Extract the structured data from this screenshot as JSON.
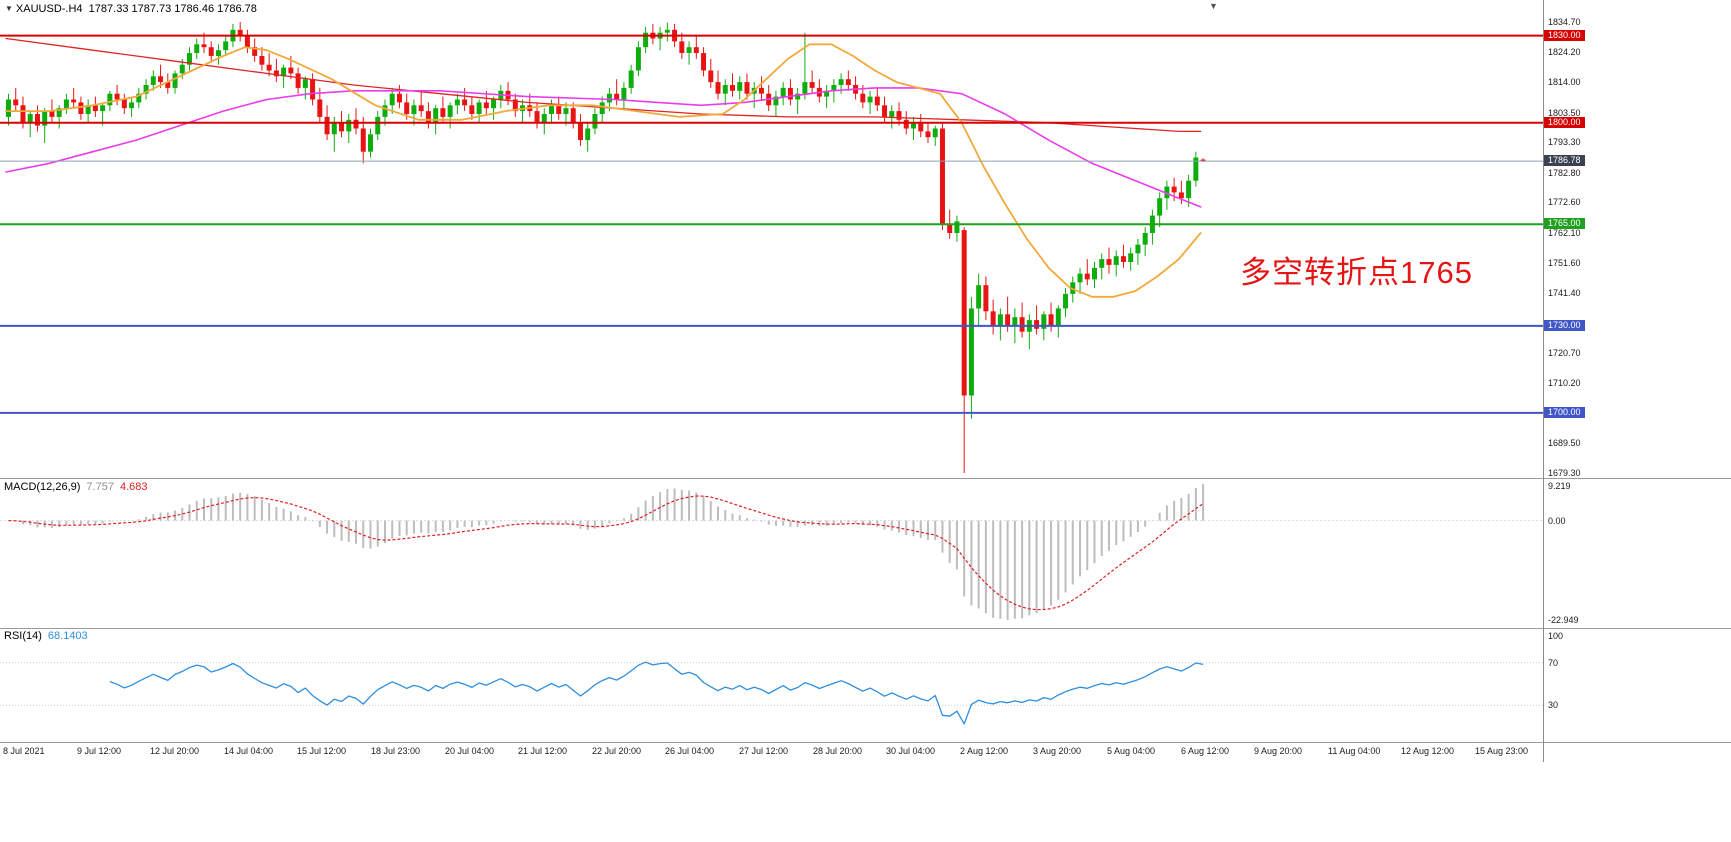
{
  "window": {
    "title_symbol": "XAUUSD-.H4",
    "title_ohlc": "1787.33 1787.73 1786.46 1786.78"
  },
  "chart_data": {
    "type": "candlestick",
    "symbol": "XAUUSD-",
    "timeframe": "H4",
    "ylim": [
      1679.3,
      1834.7
    ],
    "up_color": "#0ead0e",
    "down_color": "#e81414",
    "candles": [
      [
        1802,
        1810,
        1799,
        1808
      ],
      [
        1808,
        1812,
        1804,
        1806
      ],
      [
        1806,
        1809,
        1798,
        1800
      ],
      [
        1800,
        1804,
        1795,
        1803
      ],
      [
        1803,
        1806,
        1797,
        1799
      ],
      [
        1799,
        1805,
        1793,
        1804
      ],
      [
        1804,
        1808,
        1800,
        1802
      ],
      [
        1802,
        1806,
        1798,
        1805
      ],
      [
        1805,
        1810,
        1803,
        1808
      ],
      [
        1808,
        1812,
        1805,
        1807
      ],
      [
        1807,
        1809,
        1801,
        1803
      ],
      [
        1803,
        1808,
        1800,
        1806
      ],
      [
        1806,
        1809,
        1802,
        1804
      ],
      [
        1804,
        1807,
        1799,
        1806
      ],
      [
        1806,
        1811,
        1804,
        1810
      ],
      [
        1810,
        1813,
        1806,
        1808
      ],
      [
        1808,
        1810,
        1803,
        1805
      ],
      [
        1805,
        1809,
        1802,
        1807
      ],
      [
        1807,
        1812,
        1805,
        1810
      ],
      [
        1810,
        1815,
        1808,
        1813
      ],
      [
        1813,
        1818,
        1811,
        1816
      ],
      [
        1816,
        1820,
        1812,
        1814
      ],
      [
        1814,
        1817,
        1810,
        1812
      ],
      [
        1812,
        1818,
        1810,
        1817
      ],
      [
        1817,
        1822,
        1815,
        1820
      ],
      [
        1820,
        1826,
        1818,
        1824
      ],
      [
        1824,
        1829,
        1822,
        1827
      ],
      [
        1827,
        1831,
        1824,
        1826
      ],
      [
        1826,
        1828,
        1821,
        1823
      ],
      [
        1823,
        1827,
        1820,
        1825
      ],
      [
        1825,
        1830,
        1823,
        1828
      ],
      [
        1828,
        1834,
        1826,
        1832
      ],
      [
        1832,
        1834.7,
        1828,
        1830
      ],
      [
        1830,
        1832,
        1824,
        1826
      ],
      [
        1826,
        1829,
        1821,
        1823
      ],
      [
        1823,
        1826,
        1818,
        1820
      ],
      [
        1820,
        1824,
        1816,
        1818
      ],
      [
        1818,
        1822,
        1814,
        1816
      ],
      [
        1816,
        1820,
        1812,
        1819
      ],
      [
        1819,
        1823,
        1815,
        1817
      ],
      [
        1817,
        1819,
        1810,
        1812
      ],
      [
        1812,
        1816,
        1808,
        1815
      ],
      [
        1815,
        1817,
        1806,
        1808
      ],
      [
        1808,
        1812,
        1800,
        1802
      ],
      [
        1802,
        1806,
        1794,
        1796
      ],
      [
        1796,
        1802,
        1790,
        1800
      ],
      [
        1800,
        1804,
        1795,
        1797
      ],
      [
        1797,
        1803,
        1793,
        1801
      ],
      [
        1801,
        1805,
        1796,
        1798
      ],
      [
        1798,
        1802,
        1786,
        1790
      ],
      [
        1790,
        1798,
        1788,
        1796
      ],
      [
        1796,
        1804,
        1794,
        1802
      ],
      [
        1802,
        1808,
        1799,
        1806
      ],
      [
        1806,
        1812,
        1803,
        1810
      ],
      [
        1810,
        1813,
        1805,
        1807
      ],
      [
        1807,
        1810,
        1801,
        1803
      ],
      [
        1803,
        1808,
        1799,
        1806
      ],
      [
        1806,
        1811,
        1802,
        1804
      ],
      [
        1804,
        1807,
        1798,
        1800
      ],
      [
        1800,
        1806,
        1796,
        1805
      ],
      [
        1805,
        1809,
        1800,
        1802
      ],
      [
        1802,
        1807,
        1798,
        1806
      ],
      [
        1806,
        1810,
        1803,
        1808
      ],
      [
        1808,
        1812,
        1804,
        1806
      ],
      [
        1806,
        1809,
        1801,
        1803
      ],
      [
        1803,
        1808,
        1800,
        1807
      ],
      [
        1807,
        1811,
        1803,
        1805
      ],
      [
        1805,
        1809,
        1801,
        1808
      ],
      [
        1808,
        1813,
        1805,
        1811
      ],
      [
        1811,
        1814,
        1806,
        1808
      ],
      [
        1808,
        1810,
        1802,
        1804
      ],
      [
        1804,
        1808,
        1800,
        1806
      ],
      [
        1806,
        1810,
        1802,
        1804
      ],
      [
        1804,
        1807,
        1798,
        1800
      ],
      [
        1800,
        1805,
        1796,
        1803
      ],
      [
        1803,
        1808,
        1800,
        1806
      ],
      [
        1806,
        1809,
        1801,
        1803
      ],
      [
        1803,
        1807,
        1799,
        1805
      ],
      [
        1805,
        1807,
        1798,
        1800
      ],
      [
        1800,
        1803,
        1792,
        1794
      ],
      [
        1794,
        1800,
        1790,
        1798
      ],
      [
        1798,
        1805,
        1796,
        1803
      ],
      [
        1803,
        1809,
        1800,
        1807
      ],
      [
        1807,
        1812,
        1804,
        1810
      ],
      [
        1810,
        1815,
        1806,
        1808
      ],
      [
        1808,
        1814,
        1805,
        1812
      ],
      [
        1812,
        1820,
        1810,
        1818
      ],
      [
        1818,
        1828,
        1816,
        1826
      ],
      [
        1826,
        1833,
        1824,
        1831
      ],
      [
        1831,
        1834,
        1827,
        1829
      ],
      [
        1829,
        1833,
        1825,
        1831
      ],
      [
        1831,
        1834.5,
        1828,
        1832
      ],
      [
        1832,
        1834,
        1826,
        1828
      ],
      [
        1828,
        1831,
        1822,
        1824
      ],
      [
        1824,
        1828,
        1820,
        1826
      ],
      [
        1826,
        1830,
        1822,
        1824
      ],
      [
        1824,
        1826,
        1816,
        1818
      ],
      [
        1818,
        1822,
        1812,
        1814
      ],
      [
        1814,
        1818,
        1808,
        1810
      ],
      [
        1810,
        1815,
        1806,
        1813
      ],
      [
        1813,
        1817,
        1809,
        1811
      ],
      [
        1811,
        1816,
        1808,
        1814
      ],
      [
        1814,
        1817,
        1808,
        1810
      ],
      [
        1810,
        1814,
        1805,
        1812
      ],
      [
        1812,
        1816,
        1808,
        1810
      ],
      [
        1810,
        1813,
        1804,
        1806
      ],
      [
        1806,
        1811,
        1802,
        1809
      ],
      [
        1809,
        1814,
        1806,
        1812
      ],
      [
        1812,
        1815,
        1806,
        1808
      ],
      [
        1808,
        1812,
        1803,
        1810
      ],
      [
        1810,
        1831,
        1808,
        1814
      ],
      [
        1814,
        1818,
        1810,
        1812
      ],
      [
        1812,
        1815,
        1807,
        1809
      ],
      [
        1809,
        1813,
        1805,
        1811
      ],
      [
        1811,
        1815,
        1807,
        1813
      ],
      [
        1813,
        1817,
        1810,
        1815
      ],
      [
        1815,
        1818,
        1811,
        1813
      ],
      [
        1813,
        1816,
        1808,
        1810
      ],
      [
        1810,
        1813,
        1805,
        1807
      ],
      [
        1807,
        1811,
        1803,
        1809
      ],
      [
        1809,
        1812,
        1804,
        1806
      ],
      [
        1806,
        1809,
        1800,
        1802
      ],
      [
        1802,
        1806,
        1798,
        1804
      ],
      [
        1804,
        1807,
        1799,
        1801
      ],
      [
        1801,
        1804,
        1796,
        1798
      ],
      [
        1798,
        1802,
        1794,
        1800
      ],
      [
        1800,
        1803,
        1795,
        1797
      ],
      [
        1797,
        1800,
        1793,
        1795
      ],
      [
        1795,
        1799,
        1792,
        1798
      ],
      [
        1798,
        1800,
        1763,
        1765
      ],
      [
        1765,
        1770,
        1760,
        1762
      ],
      [
        1762,
        1768,
        1759,
        1766
      ],
      [
        1763,
        1764,
        1679.3,
        1706
      ],
      [
        1706,
        1740,
        1698,
        1736
      ],
      [
        1736,
        1748,
        1730,
        1744
      ],
      [
        1744,
        1747,
        1732,
        1735
      ],
      [
        1735,
        1739,
        1727,
        1730
      ],
      [
        1730,
        1736,
        1725,
        1734
      ],
      [
        1734,
        1740,
        1728,
        1730
      ],
      [
        1730,
        1736,
        1724,
        1733
      ],
      [
        1733,
        1738,
        1726,
        1728
      ],
      [
        1728,
        1734,
        1722,
        1732
      ],
      [
        1732,
        1737,
        1727,
        1729
      ],
      [
        1729,
        1735,
        1725,
        1734
      ],
      [
        1734,
        1738,
        1728,
        1730
      ],
      [
        1730,
        1737,
        1726,
        1736
      ],
      [
        1736,
        1743,
        1733,
        1741
      ],
      [
        1741,
        1747,
        1738,
        1745
      ],
      [
        1745,
        1750,
        1741,
        1748
      ],
      [
        1748,
        1753,
        1744,
        1746
      ],
      [
        1746,
        1752,
        1743,
        1750
      ],
      [
        1750,
        1755,
        1746,
        1753
      ],
      [
        1753,
        1757,
        1748,
        1751
      ],
      [
        1751,
        1756,
        1747,
        1754
      ],
      [
        1754,
        1758,
        1750,
        1752
      ],
      [
        1752,
        1757,
        1749,
        1755
      ],
      [
        1755,
        1760,
        1751,
        1758
      ],
      [
        1758,
        1764,
        1754,
        1762
      ],
      [
        1762,
        1770,
        1758,
        1768
      ],
      [
        1768,
        1776,
        1764,
        1774
      ],
      [
        1774,
        1780,
        1770,
        1778
      ],
      [
        1778,
        1781,
        1773,
        1776
      ],
      [
        1776,
        1780,
        1772,
        1774
      ],
      [
        1774,
        1782,
        1771,
        1780
      ],
      [
        1780,
        1790,
        1778,
        1788
      ],
      [
        1787.3,
        1787.7,
        1786.5,
        1786.8
      ]
    ],
    "ma_lines": [
      {
        "name": "ma-slow-red-line",
        "color": "#e02424",
        "width": 1.3,
        "points": [
          [
            0,
            1829
          ],
          [
            12,
            1825
          ],
          [
            24,
            1821
          ],
          [
            36,
            1817
          ],
          [
            48,
            1813
          ],
          [
            60,
            1810
          ],
          [
            72,
            1807
          ],
          [
            84,
            1805
          ],
          [
            96,
            1803
          ],
          [
            108,
            1802
          ],
          [
            120,
            1802
          ],
          [
            132,
            1801
          ],
          [
            144,
            1800
          ],
          [
            150,
            1799
          ],
          [
            156,
            1798
          ],
          [
            162,
            1797
          ],
          [
            165,
            1797
          ]
        ]
      },
      {
        "name": "ma-mid-magenta-line",
        "color": "#ea3dea",
        "width": 1.6,
        "points": [
          [
            0,
            1783
          ],
          [
            6,
            1786
          ],
          [
            12,
            1790
          ],
          [
            18,
            1794
          ],
          [
            24,
            1799
          ],
          [
            30,
            1804
          ],
          [
            36,
            1808
          ],
          [
            42,
            1810
          ],
          [
            48,
            1811
          ],
          [
            60,
            1811
          ],
          [
            72,
            1809
          ],
          [
            84,
            1808
          ],
          [
            96,
            1806
          ],
          [
            102,
            1807
          ],
          [
            108,
            1809
          ],
          [
            114,
            1811
          ],
          [
            120,
            1812
          ],
          [
            126,
            1812
          ],
          [
            132,
            1810
          ],
          [
            138,
            1803
          ],
          [
            144,
            1794
          ],
          [
            150,
            1786
          ],
          [
            156,
            1780
          ],
          [
            162,
            1774
          ],
          [
            165,
            1771
          ]
        ]
      },
      {
        "name": "ma-fast-orange-line",
        "color": "#f2a93b",
        "width": 1.8,
        "points": [
          [
            0,
            1804
          ],
          [
            6,
            1804
          ],
          [
            12,
            1806
          ],
          [
            18,
            1809
          ],
          [
            24,
            1816
          ],
          [
            30,
            1823
          ],
          [
            33,
            1826
          ],
          [
            36,
            1825
          ],
          [
            39,
            1822
          ],
          [
            45,
            1815
          ],
          [
            51,
            1806
          ],
          [
            57,
            1801
          ],
          [
            63,
            1801
          ],
          [
            69,
            1804
          ],
          [
            75,
            1806
          ],
          [
            81,
            1806
          ],
          [
            87,
            1804
          ],
          [
            93,
            1802
          ],
          [
            99,
            1803
          ],
          [
            102,
            1808
          ],
          [
            105,
            1815
          ],
          [
            108,
            1822
          ],
          [
            111,
            1827
          ],
          [
            114,
            1827
          ],
          [
            117,
            1823
          ],
          [
            120,
            1818
          ],
          [
            123,
            1814
          ],
          [
            126,
            1812
          ],
          [
            129,
            1810
          ],
          [
            132,
            1800
          ],
          [
            135,
            1785
          ],
          [
            138,
            1772
          ],
          [
            141,
            1760
          ],
          [
            144,
            1750
          ],
          [
            147,
            1743
          ],
          [
            150,
            1740
          ],
          [
            153,
            1740
          ],
          [
            156,
            1742
          ],
          [
            159,
            1747
          ],
          [
            162,
            1753
          ],
          [
            165,
            1762
          ]
        ]
      }
    ],
    "hlines": [
      {
        "price": 1830.0,
        "label": "1830.00",
        "color": "#d60000"
      },
      {
        "price": 1800.0,
        "label": "1800.00",
        "color": "#d60000"
      },
      {
        "price": 1765.0,
        "label": "1765.00",
        "color": "#1fa11f"
      },
      {
        "price": 1730.0,
        "label": "1730.00",
        "color": "#4056c8"
      },
      {
        "price": 1700.0,
        "label": "1700.00",
        "color": "#4056c8"
      }
    ],
    "current_price": {
      "value": 1786.78,
      "label": "1786.78",
      "line_color": "#8fa0b4",
      "tag_bg": "#3a4150"
    },
    "price_axis_labels": [
      1834.7,
      1824.2,
      1814.0,
      1803.5,
      1793.3,
      1782.8,
      1772.6,
      1762.1,
      1751.6,
      1741.4,
      1720.7,
      1710.2,
      1689.5,
      1679.3
    ],
    "annotation": {
      "text": "多空转折点1765",
      "color": "#e51515"
    },
    "macd": {
      "name": "MACD(12,26,9)",
      "value_main": "7.757",
      "value_signal": "4.683",
      "axis_max": "9.219",
      "axis_zero": "0.00",
      "axis_min": "-22.949",
      "histogram_color": "#bdbdbd",
      "signal_color": "#e02020",
      "params": {
        "fast": 12,
        "slow": 26,
        "signal": 9
      }
    },
    "rsi": {
      "name": "RSI(14)",
      "value": "68.1403",
      "period": 14,
      "axis_labels": [
        "100",
        "70",
        "30"
      ],
      "levels": [
        70,
        30
      ],
      "line_color": "#2e8fdd"
    },
    "time_axis": {
      "labels": [
        "8 Jul 2021",
        "9 Jul 12:00",
        "12 Jul 20:00",
        "14 Jul 04:00",
        "15 Jul 12:00",
        "18 Jul 23:00",
        "20 Jul 04:00",
        "21 Jul 12:00",
        "22 Jul 20:00",
        "26 Jul 04:00",
        "27 Jul 12:00",
        "28 Jul 20:00",
        "30 Jul 04:00",
        "2 Aug 12:00",
        "3 Aug 20:00",
        "5 Aug 04:00",
        "6 Aug 12:00",
        "9 Aug 20:00",
        "11 Aug 04:00",
        "12 Aug 12:00",
        "15 Aug 23:00"
      ]
    }
  }
}
